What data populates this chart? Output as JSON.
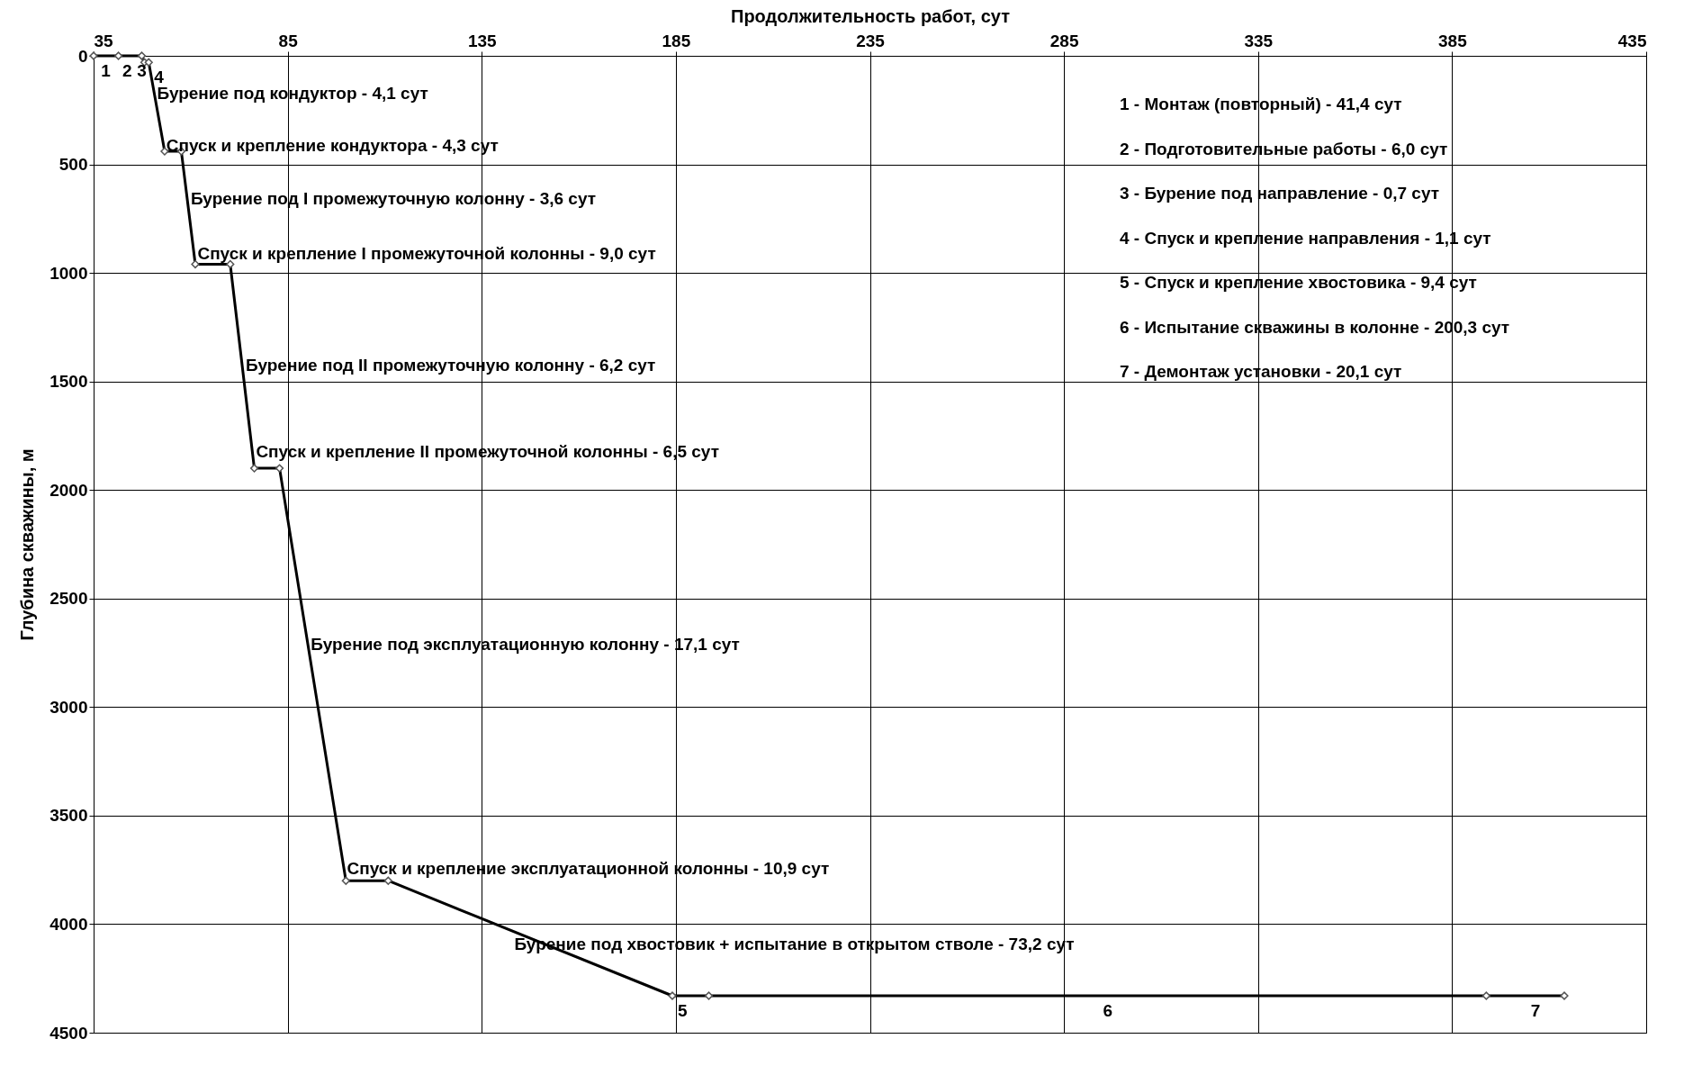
{
  "chart_data": {
    "type": "line",
    "xlabel": "Продолжительность работ, сут",
    "ylabel": "Глубина скважины, м",
    "x": [
      35,
      41.4,
      47.4,
      48.1,
      49.2,
      53.3,
      57.6,
      61.2,
      70.2,
      76.4,
      82.9,
      100.0,
      110.9,
      184.1,
      193.5,
      393.8,
      413.9
    ],
    "series": [
      {
        "color": "#000000",
        "values": [
          0,
          0,
          0,
          30,
          30,
          440,
          440,
          960,
          960,
          1900,
          1900,
          3800,
          3800,
          4330,
          4330,
          4330,
          4330
        ]
      }
    ],
    "marker": "diamond",
    "grid": true,
    "xlim": [
      35,
      435
    ],
    "xticks": [
      35,
      85,
      135,
      185,
      235,
      285,
      335,
      385,
      435
    ],
    "ylim": [
      4500,
      0
    ],
    "yticks": [
      0,
      500,
      1000,
      1500,
      2000,
      2500,
      3000,
      3500,
      4000,
      4500
    ],
    "annotations": [
      {
        "text": "Бурение под кондуктор - 4,1 сут",
        "x": 49.95,
        "y": 105
      },
      {
        "text": "Спуск и крепление кондуктора - 4,3 сут",
        "x": 52.35,
        "y": 345
      },
      {
        "text": "Бурение под I промежуточную колонну - 3,6 сут",
        "x": 58.64,
        "y": 590
      },
      {
        "text": "Спуск и крепление I промежуточной колонны - 9,0 сут",
        "x": 60.37,
        "y": 840
      },
      {
        "text": "Бурение под II промежуточную колонну - 6,2 сут",
        "x": 72.8,
        "y": 1355
      },
      {
        "text": "Спуск и крепление II промежуточной колонны - 6,5 сут",
        "x": 75.44,
        "y": 1755
      },
      {
        "text": "Бурение под эксплуатационную колонну - 17,1 сут",
        "x": 89.56,
        "y": 2640
      },
      {
        "text": "Спуск и крепление эксплуатационной колонны - 10,9 сут",
        "x": 98.88,
        "y": 3675
      },
      {
        "text": "Бурение под хвостовик + испытание в открытом стволе - 73,2 сут",
        "x": 142.0,
        "y": 4025
      },
      {
        "text": "1",
        "x": 35.5,
        "y": 0
      },
      {
        "text": "2",
        "x": 41,
        "y": 0
      },
      {
        "text": "3",
        "x": 44.8,
        "y": 0
      },
      {
        "text": "4",
        "x": 49.2,
        "y": 30
      },
      {
        "text": "5",
        "x": 184.1,
        "y": 4330
      },
      {
        "text": "6",
        "x": 293.65,
        "y": 4330
      },
      {
        "text": "7",
        "x": 403.85,
        "y": 4330
      },
      "1 - Монтаж (повторный) - 41,4 сут",
      "2 - Подготовительные работы - 6,0 сут",
      "3 - Бурение под направление - 0,7 сут",
      "4 - Спуск и крепление направления - 1,1 сут",
      "5 - Спуск и крепление хвостовика - 9,4 сут",
      "6 - Испытание скважины в колонне - 200,3 сут",
      "7 - Демонтаж установки - 20,1 сут"
    ]
  }
}
